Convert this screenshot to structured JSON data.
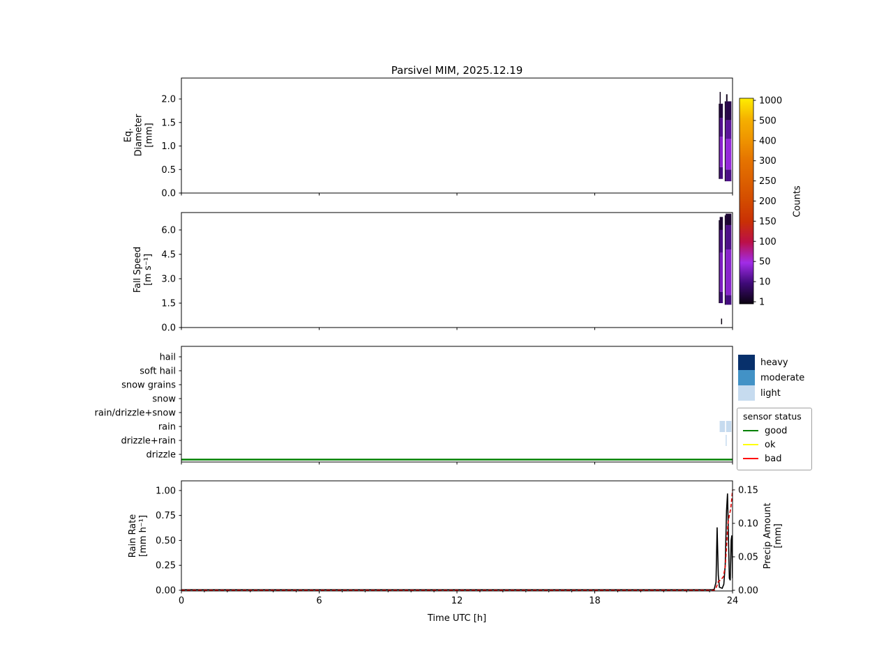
{
  "title": "Parsivel MIM, 2025.12.19",
  "xaxis": {
    "label": "Time UTC [h]",
    "lim": [
      0,
      24
    ],
    "tick_values": [
      0,
      6,
      12,
      18,
      24
    ],
    "tick_labels": [
      "0",
      "6",
      "12",
      "18",
      "24"
    ]
  },
  "colorbar": {
    "label": "Counts",
    "tick_values": [
      1,
      10,
      50,
      100,
      150,
      200,
      250,
      300,
      400,
      500,
      1000
    ],
    "tick_labels": [
      "1",
      "10",
      "50",
      "100",
      "150",
      "200",
      "250",
      "300",
      "400",
      "500",
      "1000"
    ],
    "colors": [
      "#0b0210",
      "#3f0a78",
      "#a12ce8",
      "#bb1048",
      "#c93005",
      "#d34b00",
      "#dc6000",
      "#e57400",
      "#ef9500",
      "#f5b100",
      "#ffee00"
    ]
  },
  "chart_data": [
    {
      "id": "eq_diameter",
      "type": "heatmap",
      "ylabel_lines": [
        "Eq.",
        "Diameter",
        "[mm]"
      ],
      "ylim": [
        0,
        2.445
      ],
      "ytick_values": [
        0,
        0.5,
        1,
        1.5,
        2
      ],
      "ytick_labels": [
        "0.0",
        "0.5",
        "1.0",
        "1.5",
        "2.0"
      ],
      "cells": [
        {
          "t0": 23.4,
          "t1": 23.44,
          "y0": 0.3,
          "y1": 1.9,
          "count": 2
        },
        {
          "t0": 23.44,
          "t1": 23.47,
          "y0": 1.9,
          "y1": 2.15,
          "count": 2
        },
        {
          "t0": 23.44,
          "t1": 23.58,
          "y0": 0.3,
          "y1": 0.55,
          "count": 12
        },
        {
          "t0": 23.44,
          "t1": 23.58,
          "y0": 0.55,
          "y1": 1.2,
          "count": 40
        },
        {
          "t0": 23.44,
          "t1": 23.58,
          "y0": 1.2,
          "y1": 1.6,
          "count": 18
        },
        {
          "t0": 23.44,
          "t1": 23.58,
          "y0": 1.6,
          "y1": 1.9,
          "count": 5
        },
        {
          "t0": 23.66,
          "t1": 23.7,
          "y0": 0.25,
          "y1": 1.95,
          "count": 3
        },
        {
          "t0": 23.7,
          "t1": 23.95,
          "y0": 0.25,
          "y1": 0.5,
          "count": 15
        },
        {
          "t0": 23.7,
          "t1": 23.95,
          "y0": 0.5,
          "y1": 1.15,
          "count": 45
        },
        {
          "t0": 23.7,
          "t1": 23.95,
          "y0": 1.15,
          "y1": 1.55,
          "count": 22
        },
        {
          "t0": 23.7,
          "t1": 23.95,
          "y0": 1.55,
          "y1": 1.95,
          "count": 6
        },
        {
          "t0": 23.72,
          "t1": 23.78,
          "y0": 1.95,
          "y1": 2.1,
          "count": 2
        }
      ]
    },
    {
      "id": "fall_speed",
      "type": "heatmap",
      "ylabel_lines": [
        "Fall Speed",
        "[m s⁻¹]"
      ],
      "ylim": [
        0,
        7.07
      ],
      "ytick_values": [
        0,
        1.5,
        3,
        4.5,
        6
      ],
      "ytick_labels": [
        "0.0",
        "1.5",
        "3.0",
        "4.5",
        "6.0"
      ],
      "cells": [
        {
          "t0": 23.4,
          "t1": 23.44,
          "y0": 1.5,
          "y1": 6.6,
          "count": 2
        },
        {
          "t0": 23.44,
          "t1": 23.58,
          "y0": 1.5,
          "y1": 2.2,
          "count": 10
        },
        {
          "t0": 23.44,
          "t1": 23.58,
          "y0": 2.2,
          "y1": 4.6,
          "count": 35
        },
        {
          "t0": 23.44,
          "t1": 23.58,
          "y0": 4.6,
          "y1": 6.0,
          "count": 15
        },
        {
          "t0": 23.44,
          "t1": 23.58,
          "y0": 6.0,
          "y1": 6.8,
          "count": 4
        },
        {
          "t0": 23.5,
          "t1": 23.54,
          "y0": 0.2,
          "y1": 0.55,
          "count": 1
        },
        {
          "t0": 23.66,
          "t1": 23.7,
          "y0": 1.4,
          "y1": 6.9,
          "count": 3
        },
        {
          "t0": 23.7,
          "t1": 23.95,
          "y0": 1.4,
          "y1": 2.0,
          "count": 12
        },
        {
          "t0": 23.7,
          "t1": 23.95,
          "y0": 2.0,
          "y1": 4.8,
          "count": 40
        },
        {
          "t0": 23.7,
          "t1": 23.95,
          "y0": 4.8,
          "y1": 6.3,
          "count": 16
        },
        {
          "t0": 23.7,
          "t1": 23.95,
          "y0": 6.3,
          "y1": 7.0,
          "count": 4
        }
      ]
    },
    {
      "id": "precip_type",
      "type": "category",
      "categories": [
        "hail",
        "soft hail",
        "snow grains",
        "snow",
        "rain/drizzle+snow",
        "rain",
        "drizzle+rain",
        "drizzle"
      ],
      "events": [
        {
          "t0": 23.44,
          "t1": 23.67,
          "category": "rain",
          "intensity": "light"
        },
        {
          "t0": 23.72,
          "t1": 23.95,
          "category": "rain",
          "intensity": "light"
        },
        {
          "t0": 23.7,
          "t1": 23.73,
          "category": "drizzle+rain",
          "intensity": "light"
        }
      ],
      "status_line": {
        "label": "good",
        "color": "#008000"
      },
      "legend": {
        "intensities": [
          {
            "label": "heavy",
            "color": "#08306b"
          },
          {
            "label": "moderate",
            "color": "#4292c6"
          },
          {
            "label": "light",
            "color": "#c6dbef"
          }
        ],
        "sensor_status_title": "sensor status",
        "statuses": [
          {
            "label": "good",
            "color": "#008000"
          },
          {
            "label": "ok",
            "color": "#ffff00"
          },
          {
            "label": "bad",
            "color": "#ff0000"
          }
        ]
      }
    },
    {
      "id": "rain_rate",
      "type": "line",
      "ylabel_lines": [
        "Rain Rate",
        "[mm h⁻¹]"
      ],
      "ylim": [
        -0.007,
        1.097
      ],
      "ytick_values": [
        0,
        0.25,
        0.5,
        0.75,
        1
      ],
      "ytick_labels": [
        "0.00",
        "0.25",
        "0.50",
        "0.75",
        "1.00"
      ],
      "right_axis": {
        "label_lines": [
          "Precip Amount",
          "[mm]"
        ],
        "lim": [
          -0.001,
          0.1635
        ],
        "tick_values": [
          0,
          0.05,
          0.1,
          0.15
        ],
        "tick_labels": [
          "0.00",
          "0.05",
          "0.10",
          "0.15"
        ]
      },
      "series": [
        {
          "name": "rain_rate",
          "color": "#000000",
          "style": "solid",
          "axis": "left",
          "points": [
            [
              0,
              0.005
            ],
            [
              23.1,
              0.005
            ],
            [
              23.2,
              0.01
            ],
            [
              23.28,
              0.08
            ],
            [
              23.33,
              0.63
            ],
            [
              23.38,
              0.15
            ],
            [
              23.43,
              0.03
            ],
            [
              23.55,
              0.02
            ],
            [
              23.62,
              0.06
            ],
            [
              23.68,
              0.25
            ],
            [
              23.74,
              0.8
            ],
            [
              23.78,
              0.97
            ],
            [
              23.82,
              0.55
            ],
            [
              23.86,
              0.12
            ],
            [
              23.9,
              0.1
            ],
            [
              23.94,
              0.5
            ],
            [
              23.97,
              0.55
            ],
            [
              24,
              0.12
            ]
          ]
        },
        {
          "name": "precip_amount",
          "color": "#e00000",
          "style": "dashed",
          "axis": "right",
          "points": [
            [
              0,
              0
            ],
            [
              23.2,
              0
            ],
            [
              23.3,
              0.005
            ],
            [
              23.38,
              0.013
            ],
            [
              23.5,
              0.016
            ],
            [
              23.6,
              0.02
            ],
            [
              23.68,
              0.035
            ],
            [
              23.74,
              0.065
            ],
            [
              23.8,
              0.1
            ],
            [
              23.86,
              0.112
            ],
            [
              23.92,
              0.122
            ],
            [
              23.96,
              0.135
            ],
            [
              24,
              0.15
            ]
          ]
        }
      ]
    }
  ]
}
